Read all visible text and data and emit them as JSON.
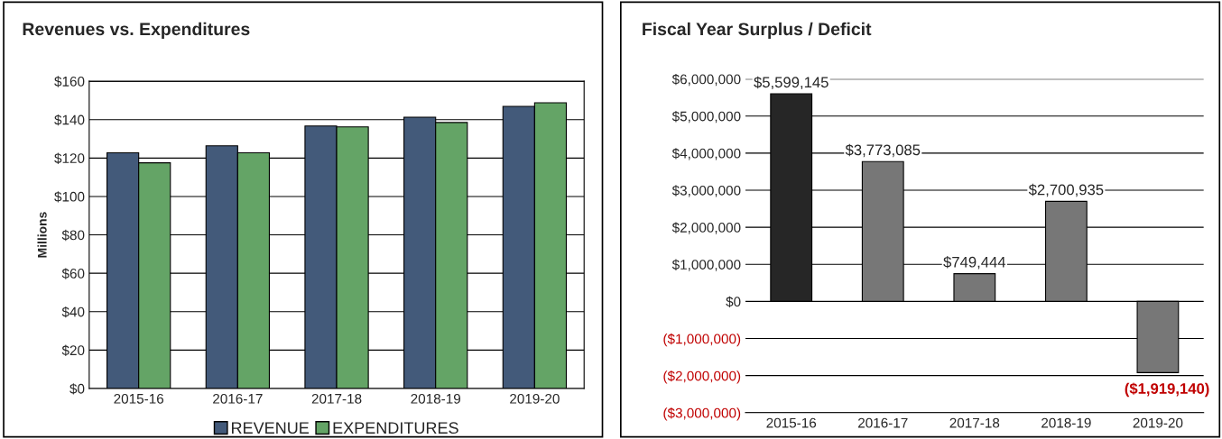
{
  "chart_data": [
    {
      "type": "bar",
      "title": "Revenues vs. Expenditures",
      "ylabel": "Millions",
      "categories": [
        "2015-16",
        "2016-17",
        "2017-18",
        "2018-19",
        "2019-20"
      ],
      "series": [
        {
          "name": "REVENUE",
          "color": "#435a7a",
          "values": [
            122.7,
            126.4,
            136.7,
            141.3,
            146.9
          ]
        },
        {
          "name": "EXPENDITURES",
          "color": "#64a466",
          "values": [
            117.5,
            122.7,
            136.2,
            138.5,
            148.8
          ]
        }
      ],
      "ylim": [
        0,
        160
      ],
      "yticks": [
        {
          "value": 0,
          "label": "$0"
        },
        {
          "value": 20,
          "label": "$20"
        },
        {
          "value": 40,
          "label": "$40"
        },
        {
          "value": 60,
          "label": "$60"
        },
        {
          "value": 80,
          "label": "$80"
        },
        {
          "value": 100,
          "label": "$100"
        },
        {
          "value": 120,
          "label": "$120"
        },
        {
          "value": 140,
          "label": "$140"
        },
        {
          "value": 160,
          "label": "$160"
        }
      ],
      "grid": "y",
      "legend": "bottom"
    },
    {
      "type": "bar",
      "title": "Fiscal Year Surplus / Deficit",
      "categories": [
        "2015-16",
        "2016-17",
        "2017-18",
        "2018-19",
        "2019-20"
      ],
      "values": [
        5599145,
        3773085,
        749444,
        2700935,
        -1919140
      ],
      "colors": [
        "#262626",
        "#777777",
        "#777777",
        "#777777",
        "#777777"
      ],
      "value_labels": [
        "$5,599,145",
        "$3,773,085",
        "$749,444",
        "$2,700,935",
        "($1,919,140)"
      ],
      "ylim": [
        -3000000,
        6000000
      ],
      "yticks": [
        {
          "value": -3000000,
          "label": "($3,000,000)"
        },
        {
          "value": -2000000,
          "label": "($2,000,000)"
        },
        {
          "value": -1000000,
          "label": "($1,000,000)"
        },
        {
          "value": 0,
          "label": "$0"
        },
        {
          "value": 1000000,
          "label": "$1,000,000"
        },
        {
          "value": 2000000,
          "label": "$2,000,000"
        },
        {
          "value": 3000000,
          "label": "$3,000,000"
        },
        {
          "value": 4000000,
          "label": "$4,000,000"
        },
        {
          "value": 5000000,
          "label": "$5,000,000"
        },
        {
          "value": 6000000,
          "label": "$6,000,000"
        }
      ],
      "grid": "y"
    }
  ]
}
